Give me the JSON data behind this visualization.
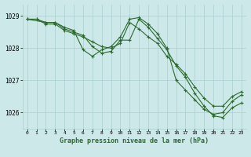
{
  "title": "Graphe pression niveau de la mer (hPa)",
  "background_color": "#cce8e8",
  "grid_color": "#aacfcf",
  "line_color": "#2d6a2d",
  "xlim": [
    -0.5,
    23.5
  ],
  "ylim": [
    1025.5,
    1029.35
  ],
  "yticks": [
    1026,
    1027,
    1028,
    1029
  ],
  "xticks": [
    0,
    1,
    2,
    3,
    4,
    5,
    6,
    7,
    8,
    9,
    10,
    11,
    12,
    13,
    14,
    15,
    16,
    17,
    18,
    19,
    20,
    21,
    22,
    23
  ],
  "series": [
    {
      "x": [
        0,
        1,
        2,
        3,
        4,
        5,
        6,
        7,
        8,
        9,
        10,
        11,
        12,
        13,
        14,
        15,
        16,
        17,
        18,
        19,
        20,
        21,
        22,
        23
      ],
      "y": [
        1028.9,
        1028.9,
        1028.8,
        1028.8,
        1028.65,
        1028.55,
        1027.95,
        1027.75,
        1027.95,
        1028.05,
        1028.35,
        1028.9,
        1028.95,
        1028.75,
        1028.45,
        1028.0,
        1027.0,
        1026.7,
        1026.4,
        1026.1,
        1025.95,
        1026.0,
        1026.35,
        1026.55
      ]
    },
    {
      "x": [
        0,
        1,
        2,
        3,
        4,
        5,
        6,
        7,
        8,
        9,
        10,
        11,
        12,
        13,
        14,
        15,
        16,
        17,
        18,
        19,
        20,
        21,
        22,
        23
      ],
      "y": [
        1028.9,
        1028.9,
        1028.75,
        1028.75,
        1028.55,
        1028.45,
        1028.35,
        1028.2,
        1028.05,
        1028.0,
        1028.15,
        1028.8,
        1028.6,
        1028.35,
        1028.15,
        1027.75,
        1027.5,
        1027.2,
        1026.8,
        1026.45,
        1026.2,
        1026.2,
        1026.5,
        1026.65
      ]
    },
    {
      "x": [
        0,
        2,
        3,
        4,
        5,
        6,
        7,
        8,
        9,
        10,
        11,
        12,
        13,
        14,
        15,
        16,
        17,
        18,
        19,
        20,
        21,
        22,
        23
      ],
      "y": [
        1028.9,
        1028.8,
        1028.8,
        1028.6,
        1028.5,
        1028.4,
        1028.05,
        1027.85,
        1027.9,
        1028.25,
        1028.25,
        1028.9,
        1028.65,
        1028.3,
        1027.95,
        1027.45,
        1027.1,
        1026.6,
        1026.2,
        1025.9,
        1025.85,
        1026.15,
        1026.3
      ]
    }
  ]
}
